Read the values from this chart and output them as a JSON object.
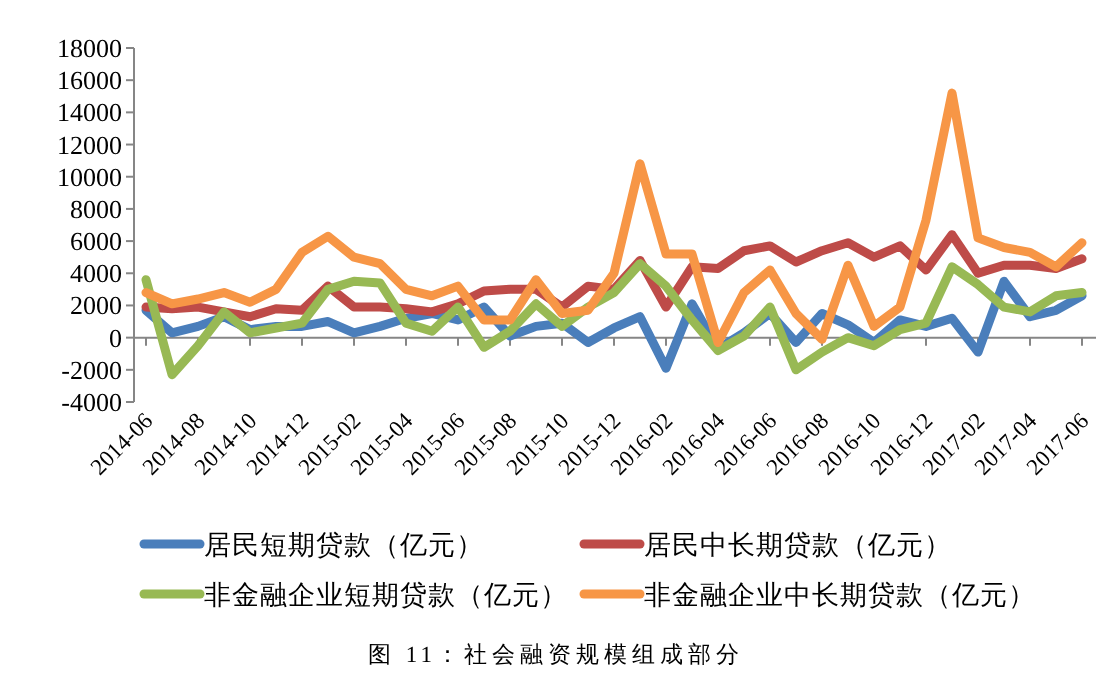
{
  "chart_data": {
    "type": "line",
    "categories": [
      "2014-06",
      null,
      "2014-08",
      null,
      "2014-10",
      null,
      "2014-12",
      null,
      "2015-02",
      null,
      "2015-04",
      null,
      "2015-06",
      null,
      "2015-08",
      null,
      "2015-10",
      null,
      "2015-12",
      null,
      "2016-02",
      null,
      "2016-04",
      null,
      "2016-06",
      null,
      "2016-08",
      null,
      "2016-10",
      null,
      "2016-12",
      null,
      "2017-02",
      null,
      "2017-04",
      null,
      "2017-06"
    ],
    "ylim": [
      -4000,
      18000
    ],
    "yticks": [
      -4000,
      -2000,
      0,
      2000,
      4000,
      6000,
      8000,
      10000,
      12000,
      14000,
      16000,
      18000
    ],
    "legend": "bottom",
    "line_style": "solid",
    "marker": "none",
    "series": [
      {
        "name": "居民短期贷款（亿元）",
        "color": "#4a7ebb",
        "values": [
          1700,
          300,
          700,
          1300,
          500,
          700,
          700,
          1000,
          300,
          700,
          1200,
          1500,
          1100,
          1900,
          100,
          700,
          900,
          -300,
          600,
          1300,
          -1900,
          2100,
          -700,
          300,
          1500,
          -300,
          1500,
          800,
          -300,
          1100,
          700,
          1200,
          -900,
          3500,
          1300,
          1700,
          2600
        ]
      },
      {
        "name": "居民中长期贷款（亿元）",
        "color": "#be4b48",
        "values": [
          1900,
          1800,
          1900,
          1600,
          1300,
          1800,
          1700,
          3200,
          1900,
          1900,
          1800,
          1600,
          2100,
          2900,
          3000,
          3000,
          1900,
          3200,
          3000,
          4800,
          1900,
          4400,
          4300,
          5400,
          5700,
          4700,
          5400,
          5900,
          5000,
          5700,
          4200,
          6400,
          4000,
          4500,
          4500,
          4300,
          4900
        ]
      },
      {
        "name": "非金融企业短期贷款（亿元）",
        "color": "#98b954",
        "values": [
          3600,
          -2300,
          -500,
          1600,
          300,
          600,
          900,
          3000,
          3500,
          3400,
          900,
          400,
          1900,
          -600,
          400,
          2100,
          700,
          1900,
          2800,
          4600,
          3200,
          1100,
          -800,
          100,
          1900,
          -2000,
          -900,
          0,
          -500,
          500,
          900,
          4400,
          3300,
          1900,
          1600,
          2600,
          2800
        ]
      },
      {
        "name": "非金融企业中长期贷款（亿元）",
        "color": "#f79646",
        "values": [
          2800,
          2100,
          2400,
          2800,
          2200,
          3000,
          5300,
          6300,
          5000,
          4600,
          3000,
          2600,
          3200,
          1100,
          1100,
          3600,
          1500,
          1700,
          4000,
          10800,
          5200,
          5200,
          -300,
          2800,
          4200,
          1500,
          -100,
          4500,
          700,
          1900,
          7300,
          15200,
          6200,
          5600,
          5300,
          4400,
          5900
        ]
      }
    ],
    "annotations": [
      "图 11：社会融资规模组成部分"
    ]
  }
}
